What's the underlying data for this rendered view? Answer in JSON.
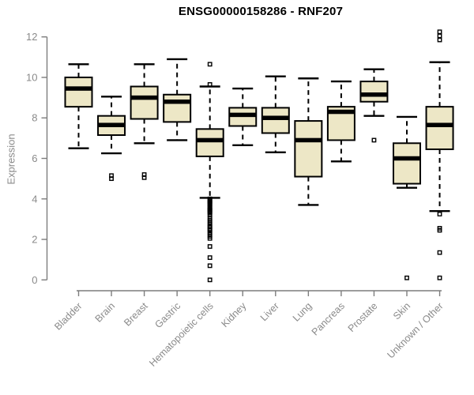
{
  "title": "ENSG00000158286 - RNF207",
  "chart_data": {
    "type": "boxplot",
    "title": "ENSG00000158286 - RNF207",
    "xlabel": "",
    "ylabel": "Expression",
    "ylim": [
      0,
      12
    ],
    "yticks": [
      0,
      2,
      4,
      6,
      8,
      10,
      12
    ],
    "grid": false,
    "legend": "none",
    "categories": [
      "Bladder",
      "Brain",
      "Breast",
      "Gastric",
      "Hematopoietic cells",
      "Kidney",
      "Liver",
      "Lung",
      "Pancreas",
      "Prostate",
      "Skin",
      "Unknown / Other"
    ],
    "series": [
      {
        "name": "Bladder",
        "whisker_low": 6.5,
        "q1": 8.55,
        "median": 9.45,
        "q3": 10.0,
        "whisker_high": 10.65,
        "outliers": []
      },
      {
        "name": "Brain",
        "whisker_low": 6.25,
        "q1": 7.15,
        "median": 7.65,
        "q3": 8.1,
        "whisker_high": 9.05,
        "outliers": [
          5.15,
          5.0
        ]
      },
      {
        "name": "Breast",
        "whisker_low": 6.75,
        "q1": 7.95,
        "median": 9.0,
        "q3": 9.55,
        "whisker_high": 10.65,
        "outliers": [
          5.2,
          5.05
        ]
      },
      {
        "name": "Gastric",
        "whisker_low": 6.9,
        "q1": 7.8,
        "median": 8.8,
        "q3": 9.15,
        "whisker_high": 10.9,
        "outliers": []
      },
      {
        "name": "Hematopoietic cells",
        "whisker_low": 4.05,
        "q1": 6.1,
        "median": 6.9,
        "q3": 7.45,
        "whisker_high": 9.55,
        "outliers": [
          10.65,
          9.65,
          4.0,
          3.95,
          3.9,
          3.85,
          3.8,
          3.75,
          3.7,
          3.6,
          3.55,
          3.5,
          3.45,
          3.4,
          3.35,
          3.3,
          3.2,
          3.05,
          2.95,
          2.85,
          2.75,
          2.65,
          2.6,
          2.5,
          2.45,
          2.35,
          2.25,
          2.15,
          2.05,
          1.65,
          1.1,
          0.7,
          0.0
        ]
      },
      {
        "name": "Kidney",
        "whisker_low": 6.65,
        "q1": 7.6,
        "median": 8.15,
        "q3": 8.5,
        "whisker_high": 9.45,
        "outliers": []
      },
      {
        "name": "Liver",
        "whisker_low": 6.3,
        "q1": 7.25,
        "median": 8.0,
        "q3": 8.5,
        "whisker_high": 10.05,
        "outliers": []
      },
      {
        "name": "Lung",
        "whisker_low": 3.7,
        "q1": 5.1,
        "median": 6.9,
        "q3": 7.85,
        "whisker_high": 9.95,
        "outliers": []
      },
      {
        "name": "Pancreas",
        "whisker_low": 5.85,
        "q1": 6.9,
        "median": 8.3,
        "q3": 8.55,
        "whisker_high": 9.8,
        "outliers": []
      },
      {
        "name": "Prostate",
        "whisker_low": 8.1,
        "q1": 8.8,
        "median": 9.15,
        "q3": 9.8,
        "whisker_high": 10.4,
        "outliers": [
          6.9
        ]
      },
      {
        "name": "Skin",
        "whisker_low": 4.55,
        "q1": 4.75,
        "median": 6.0,
        "q3": 6.75,
        "whisker_high": 8.05,
        "outliers": [
          0.1
        ]
      },
      {
        "name": "Unknown / Other",
        "whisker_low": 3.4,
        "q1": 6.45,
        "median": 7.65,
        "q3": 8.55,
        "whisker_high": 10.75,
        "outliers": [
          12.25,
          12.05,
          11.85,
          3.25,
          2.55,
          2.45,
          1.35,
          0.1
        ]
      }
    ],
    "colors": {
      "box_fill": "#EDE7C6",
      "box_stroke": "#000000",
      "median": "#000000",
      "whisker": "#000000",
      "axis": "#7d7d7d",
      "tick_label": "#8a8a8a",
      "title": "#000000",
      "background": "#ffffff"
    }
  }
}
